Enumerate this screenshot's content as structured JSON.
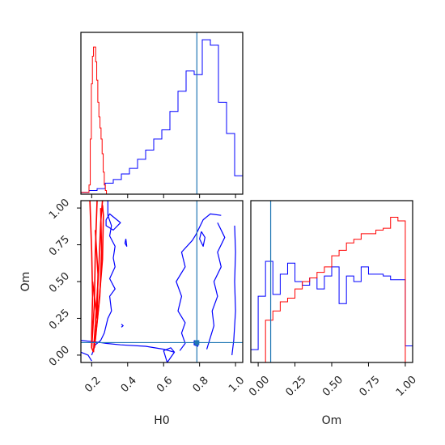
{
  "chart_data": {
    "type": "corner",
    "colors": {
      "blue": "#0000ff",
      "red": "#ff0000",
      "truth": "#1f77b4",
      "frame": "#000000"
    },
    "truth": {
      "H0": 0.785,
      "Om": 0.085
    },
    "panels": {
      "hist_H0": {
        "type": "histogram",
        "xlim": [
          0.14,
          1.04
        ],
        "x_ticks": [
          0.2,
          0.4,
          0.6,
          0.8,
          1.0
        ],
        "series": [
          {
            "color": "blue",
            "edges": [
              0.14,
              0.185,
              0.23,
              0.275,
              0.32,
              0.365,
              0.41,
              0.455,
              0.5,
              0.545,
              0.59,
              0.635,
              0.68,
              0.725,
              0.77,
              0.815,
              0.86,
              0.905,
              0.95,
              0.995,
              1.04
            ],
            "values": [
              0.01,
              0.02,
              0.03,
              0.06,
              0.08,
              0.11,
              0.14,
              0.19,
              0.24,
              0.3,
              0.35,
              0.45,
              0.56,
              0.67,
              0.65,
              0.84,
              0.81,
              0.5,
              0.33,
              0.1
            ]
          },
          {
            "color": "red",
            "edges": [
              0.14,
              0.185,
              0.192,
              0.198,
              0.204,
              0.21,
              0.216,
              0.222,
              0.228,
              0.234,
              0.24,
              0.246,
              0.252,
              0.258,
              0.264,
              0.27,
              0.276,
              0.282,
              0.3
            ],
            "values": [
              0.01,
              0.05,
              0.3,
              0.6,
              0.75,
              0.8,
              0.8,
              0.72,
              0.62,
              0.5,
              0.42,
              0.36,
              0.3,
              0.22,
              0.12,
              0.05,
              0.02,
              0.0
            ]
          }
        ]
      },
      "contour_H0_Om": {
        "type": "contour",
        "xlabel": "H0",
        "ylabel": "Om",
        "xlim": [
          0.14,
          1.04
        ],
        "ylim": [
          -0.05,
          1.05
        ],
        "x_ticks": [
          0.2,
          0.4,
          0.6,
          0.8,
          1.0
        ],
        "y_ticks": [
          0.0,
          0.25,
          0.5,
          0.75,
          1.0
        ],
        "x_tick_labels": [
          "0.2",
          "0.4",
          "0.6",
          "0.8",
          "1.0"
        ],
        "y_tick_labels": [
          "0.00",
          "0.25",
          "0.50",
          "0.75",
          "1.00"
        ],
        "contours": [
          {
            "color": "blue",
            "points": [
              [
                0.29,
                1.05
              ],
              [
                0.29,
                0.95
              ],
              [
                0.31,
                0.88
              ],
              [
                0.3,
                0.81
              ],
              [
                0.33,
                0.74
              ],
              [
                0.32,
                0.66
              ],
              [
                0.33,
                0.6
              ],
              [
                0.3,
                0.52
              ],
              [
                0.33,
                0.45
              ],
              [
                0.3,
                0.4
              ],
              [
                0.31,
                0.3
              ],
              [
                0.29,
                0.25
              ],
              [
                0.27,
                0.15
              ],
              [
                0.25,
                0.1
              ],
              [
                0.22,
                0.07
              ],
              [
                0.2,
                0.0
              ]
            ]
          },
          {
            "color": "blue",
            "points": [
              [
                0.14,
                0.1
              ],
              [
                0.22,
                0.09
              ],
              [
                0.28,
                0.08
              ],
              [
                0.36,
                0.07
              ],
              [
                0.5,
                0.06
              ],
              [
                0.6,
                0.04
              ],
              [
                0.66,
                0.02
              ]
            ]
          },
          {
            "color": "blue",
            "points": [
              [
                0.14,
                0.02
              ],
              [
                0.18,
                0.0
              ],
              [
                0.2,
                -0.04
              ]
            ]
          },
          {
            "color": "blue",
            "points": [
              [
                0.365,
                0.21
              ],
              [
                0.375,
                0.2
              ],
              [
                0.365,
                0.19
              ]
            ]
          },
          {
            "color": "blue",
            "points": [
              [
                0.39,
                0.79
              ],
              [
                0.395,
                0.74
              ],
              [
                0.385,
                0.76
              ],
              [
                0.39,
                0.79
              ]
            ]
          },
          {
            "color": "blue",
            "points": [
              [
                0.28,
                0.92
              ],
              [
                0.3,
                0.96
              ],
              [
                0.36,
                0.9
              ],
              [
                0.32,
                0.85
              ],
              [
                0.28,
                0.88
              ],
              [
                0.28,
                0.92
              ]
            ]
          },
          {
            "color": "blue",
            "points": [
              [
                0.69,
                0.03
              ],
              [
                0.72,
                0.08
              ],
              [
                0.7,
                0.15
              ],
              [
                0.72,
                0.22
              ],
              [
                0.68,
                0.3
              ],
              [
                0.7,
                0.4
              ],
              [
                0.67,
                0.5
              ],
              [
                0.72,
                0.6
              ],
              [
                0.7,
                0.7
              ],
              [
                0.76,
                0.78
              ],
              [
                0.78,
                0.82
              ],
              [
                0.82,
                0.92
              ],
              [
                0.86,
                0.96
              ],
              [
                0.92,
                0.95
              ]
            ]
          },
          {
            "color": "blue",
            "points": [
              [
                0.9,
                0.9
              ],
              [
                0.94,
                0.8
              ],
              [
                0.9,
                0.7
              ],
              [
                0.92,
                0.6
              ],
              [
                0.88,
                0.5
              ],
              [
                0.9,
                0.4
              ],
              [
                0.87,
                0.3
              ],
              [
                0.88,
                0.2
              ],
              [
                0.86,
                0.12
              ],
              [
                0.84,
                0.04
              ]
            ]
          },
          {
            "color": "blue",
            "points": [
              [
                0.81,
                0.84
              ],
              [
                0.83,
                0.8
              ],
              [
                0.82,
                0.74
              ],
              [
                0.8,
                0.79
              ],
              [
                0.81,
                0.84
              ]
            ]
          },
          {
            "color": "blue",
            "points": [
              [
                0.62,
                -0.05
              ],
              [
                0.66,
                0.02
              ],
              [
                0.64,
                0.05
              ],
              [
                0.6,
                0.03
              ],
              [
                0.62,
                -0.05
              ]
            ]
          },
          {
            "color": "blue",
            "points": [
              [
                0.77,
                0.1
              ],
              [
                0.795,
                0.085
              ],
              [
                0.79,
                0.06
              ],
              [
                0.77,
                0.07
              ],
              [
                0.77,
                0.1
              ]
            ]
          },
          {
            "color": "blue",
            "points": [
              [
                0.995,
                0.88
              ],
              [
                1.0,
                0.7
              ],
              [
                0.995,
                0.5
              ],
              [
                1.0,
                0.3
              ],
              [
                0.99,
                0.1
              ],
              [
                0.98,
                0.0
              ]
            ]
          },
          {
            "color": "red",
            "points": [
              [
                0.19,
                1.05
              ],
              [
                0.2,
                0.7
              ],
              [
                0.205,
                0.4
              ],
              [
                0.2,
                0.15
              ],
              [
                0.2,
                0.05
              ],
              [
                0.21,
                0.02
              ]
            ]
          },
          {
            "color": "red",
            "points": [
              [
                0.2,
                0.05
              ],
              [
                0.215,
                0.35
              ],
              [
                0.22,
                0.7
              ],
              [
                0.23,
                1.05
              ]
            ]
          },
          {
            "color": "red",
            "points": [
              [
                0.21,
                0.02
              ],
              [
                0.225,
                0.3
              ],
              [
                0.24,
                0.6
              ],
              [
                0.25,
                0.9
              ],
              [
                0.26,
                1.05
              ]
            ]
          },
          {
            "color": "red",
            "points": [
              [
                0.215,
                0.05
              ],
              [
                0.24,
                0.35
              ],
              [
                0.26,
                0.65
              ],
              [
                0.265,
                0.95
              ],
              [
                0.26,
                1.02
              ]
            ]
          },
          {
            "color": "red",
            "points": [
              [
                0.22,
                0.1
              ],
              [
                0.245,
                0.4
              ],
              [
                0.255,
                0.7
              ],
              [
                0.25,
                1.0
              ]
            ]
          },
          {
            "color": "red",
            "points": [
              [
                0.205,
                0.5
              ],
              [
                0.23,
                0.25
              ],
              [
                0.235,
                0.55
              ],
              [
                0.22,
                0.85
              ]
            ]
          }
        ]
      },
      "hist_Om": {
        "type": "histogram",
        "xlabel": "Om",
        "xlim": [
          -0.05,
          1.05
        ],
        "x_ticks": [
          0.0,
          0.25,
          0.5,
          0.75,
          1.0
        ],
        "x_tick_labels": [
          "0.00",
          "0.25",
          "0.50",
          "0.75",
          "1.00"
        ],
        "series": [
          {
            "color": "blue",
            "edges": [
              -0.05,
              0.0,
              0.05,
              0.1,
              0.15,
              0.2,
              0.25,
              0.3,
              0.35,
              0.4,
              0.45,
              0.5,
              0.55,
              0.6,
              0.65,
              0.7,
              0.75,
              0.8,
              0.85,
              0.9,
              0.95,
              1.0,
              1.05
            ],
            "values": [
              0.07,
              0.36,
              0.55,
              0.37,
              0.48,
              0.54,
              0.44,
              0.42,
              0.46,
              0.4,
              0.47,
              0.52,
              0.32,
              0.47,
              0.44,
              0.52,
              0.48,
              0.48,
              0.47,
              0.45,
              0.45,
              0.09
            ]
          },
          {
            "color": "red",
            "edges": [
              -0.05,
              0.0,
              0.05,
              0.1,
              0.15,
              0.2,
              0.25,
              0.3,
              0.35,
              0.4,
              0.45,
              0.5,
              0.55,
              0.6,
              0.65,
              0.7,
              0.75,
              0.8,
              0.85,
              0.9,
              0.95,
              1.0,
              1.05
            ],
            "values": [
              0.0,
              0.0,
              0.23,
              0.28,
              0.33,
              0.35,
              0.4,
              0.44,
              0.46,
              0.49,
              0.52,
              0.58,
              0.61,
              0.65,
              0.67,
              0.7,
              0.7,
              0.72,
              0.73,
              0.79,
              0.77,
              0.0
            ]
          }
        ]
      }
    }
  }
}
